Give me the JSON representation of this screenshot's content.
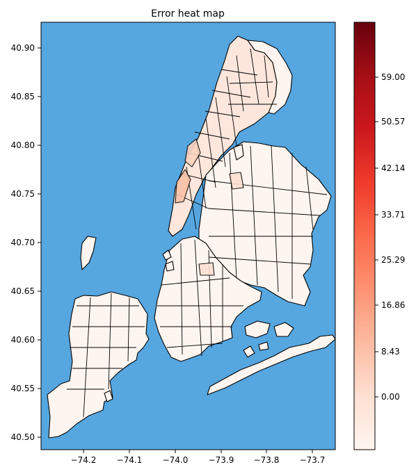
{
  "title": "Error heat map",
  "colors": {
    "water": "#56a6e0",
    "border": "#000000",
    "tract_low": "#fff5f0",
    "tract_mid": "#fde0d2",
    "tract_high": "#f8b79d"
  },
  "map": {
    "x_ticks": [
      "−74.2",
      "−74.1",
      "−74.0",
      "−73.9",
      "−73.8",
      "−73.7"
    ],
    "y_ticks": [
      "40.90",
      "40.85",
      "40.80",
      "40.75",
      "40.70",
      "40.65",
      "40.60",
      "40.55",
      "40.50"
    ]
  },
  "colorbar": {
    "cmap": "Reds",
    "min": -8.43,
    "max": 67.43,
    "ticks": [
      "59.00",
      "50.57",
      "42.14",
      "33.71",
      "25.29",
      "16.86",
      "8.43",
      "0.00"
    ]
  },
  "chart_data": {
    "type": "heatmap",
    "title": "Error heat map",
    "xlim": [
      -74.265,
      -73.69
    ],
    "ylim": [
      40.487,
      40.925
    ],
    "colorbar_range": [
      -8.43,
      67.43
    ],
    "colorbar_ticks": [
      59.0,
      50.57,
      42.14,
      33.71,
      25.29,
      16.86,
      8.43,
      0.0
    ],
    "grid": false
  }
}
